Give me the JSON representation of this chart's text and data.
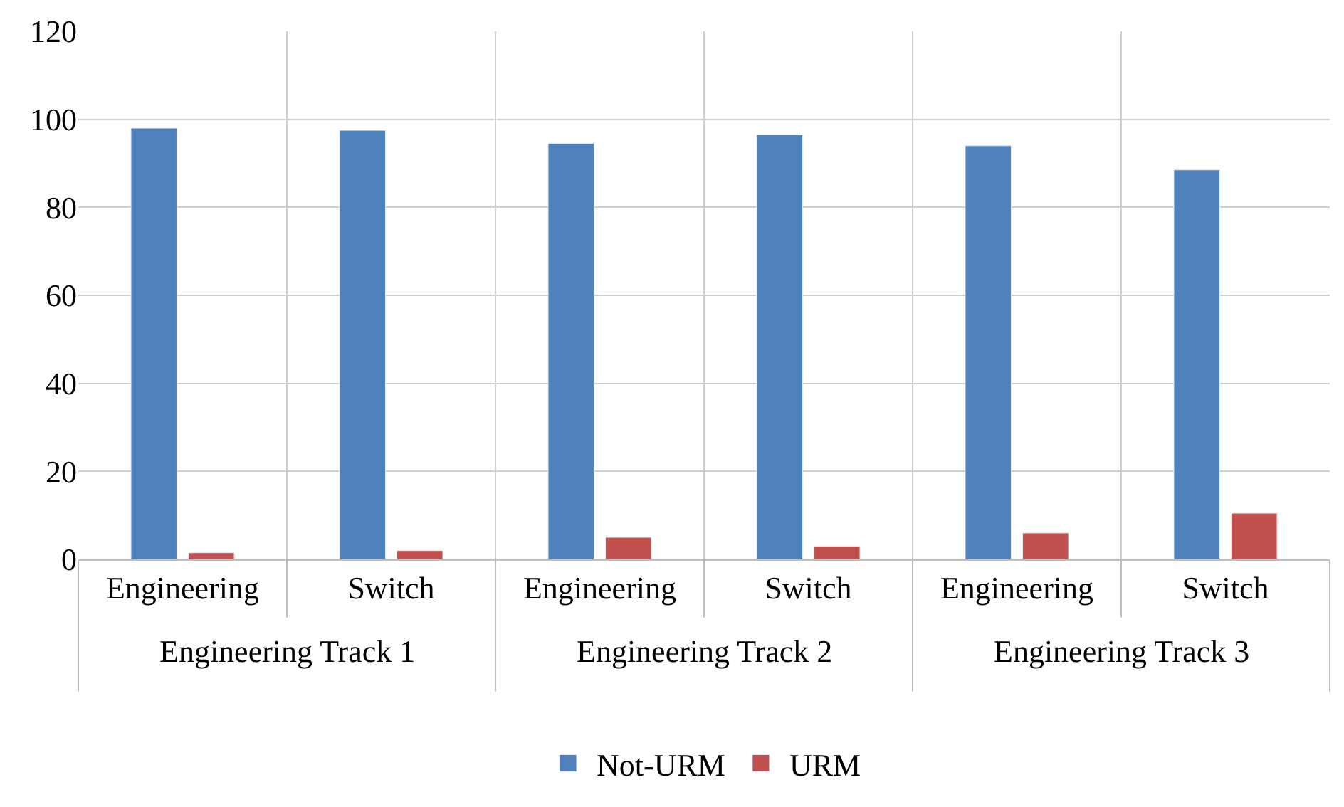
{
  "chart_data": {
    "type": "bar",
    "categories": [
      "Engineering",
      "Switch",
      "Engineering",
      "Switch",
      "Engineering",
      "Switch"
    ],
    "series": [
      {
        "name": "Not-URM",
        "color": "#4f81bd",
        "values": [
          98,
          97.5,
          94.5,
          96.5,
          94,
          88.5
        ]
      },
      {
        "name": "URM",
        "color": "#c0504d",
        "values": [
          1.5,
          2,
          5,
          3,
          6,
          10.5
        ]
      }
    ],
    "annotations": [
      "Engineering Track 1",
      "Engineering Track 2",
      "Engineering Track 3"
    ],
    "ylim": [
      0,
      120
    ],
    "yticks": [
      0,
      20,
      40,
      60,
      80,
      100,
      120
    ],
    "grid": true,
    "legend": "bottom"
  }
}
